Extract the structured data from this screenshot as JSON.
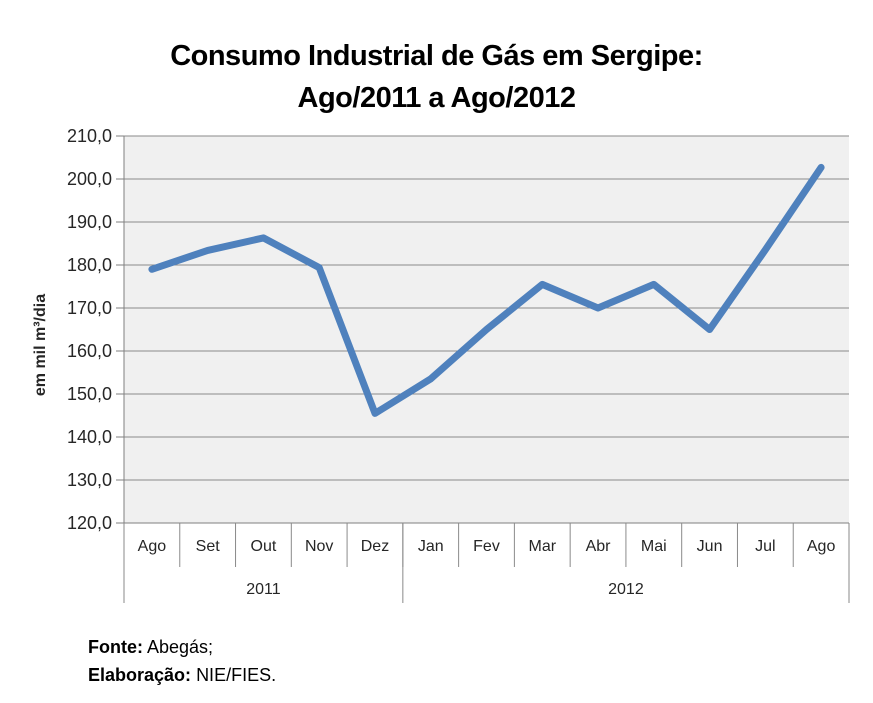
{
  "chart_data": {
    "type": "line",
    "title": "Consumo Industrial de Gás em Sergipe: Ago/2011 a Ago/2012",
    "title_line1": "Consumo Industrial de Gás em Sergipe:",
    "title_line2": "Ago/2011 a Ago/2012",
    "categories": [
      "Ago",
      "Set",
      "Out",
      "Nov",
      "Dez",
      "Jan",
      "Fev",
      "Mar",
      "Abr",
      "Mai",
      "Jun",
      "Jul",
      "Ago"
    ],
    "values": [
      179.0,
      183.4,
      186.3,
      179.4,
      145.5,
      153.5,
      165.0,
      175.5,
      170.0,
      175.5,
      165.0,
      183.5,
      202.7
    ],
    "year_groups": [
      {
        "label": "2011",
        "span": 5
      },
      {
        "label": "2012",
        "span": 8
      }
    ],
    "ylabel": "em mil m³/dia",
    "xlabel": "",
    "ylim": [
      120,
      210
    ],
    "ytick_step": 10,
    "decimal_separator": ",",
    "grid": true,
    "legend": "none",
    "colors": {
      "line": "#4F81BD",
      "plot_bg": "#F0F0F0",
      "gridline": "#8A8A8A",
      "axis": "#7F7F7F",
      "tick_text": "#262626"
    }
  },
  "footer": {
    "source_label": "Fonte:",
    "source_value": "Abegás;",
    "elaboration_label": "Elaboração:",
    "elaboration_value": "NIE/FIES."
  }
}
